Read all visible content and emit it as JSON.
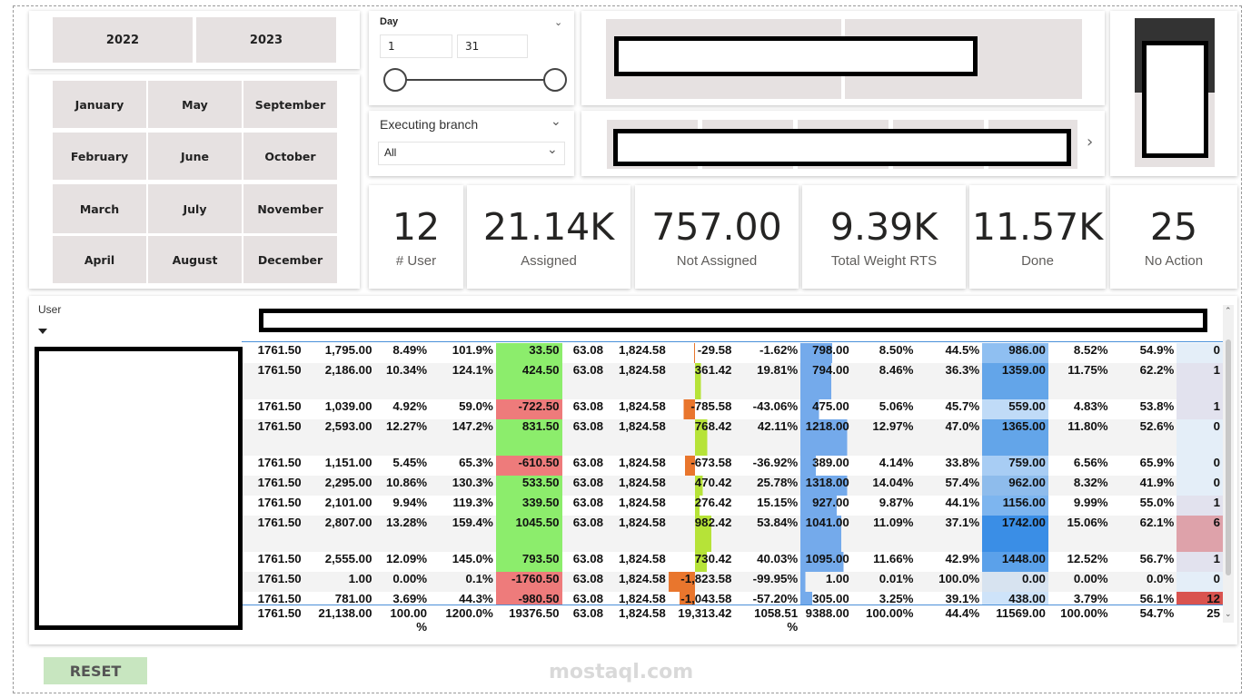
{
  "years": [
    "2022",
    "2023"
  ],
  "months": [
    "January",
    "May",
    "September",
    "February",
    "June",
    "October",
    "March",
    "July",
    "November",
    "April",
    "August",
    "December"
  ],
  "day_slicer": {
    "label": "Day",
    "start": "1",
    "end": "31"
  },
  "branch_slicer": {
    "label": "Executing branch",
    "selected": "All"
  },
  "kpis": [
    {
      "value": "12",
      "label": "# User"
    },
    {
      "value": "21.14K",
      "label": "Assigned"
    },
    {
      "value": "757.00",
      "label": "Not Assigned"
    },
    {
      "value": "9.39K",
      "label": "Total Weight RTS"
    },
    {
      "value": "11.57K",
      "label": "Done"
    },
    {
      "value": "25",
      "label": "No Action"
    }
  ],
  "table": {
    "header_user": "User",
    "rows": [
      [
        "1761.50",
        "1,795.00",
        "8.49%",
        "101.9%",
        "33.50",
        "63.08",
        "1,824.58",
        "-29.58",
        "-1.62%",
        "798.00",
        "8.50%",
        "44.5%",
        "986.00",
        "8.52%",
        "54.9%",
        "0"
      ],
      [
        "1761.50",
        "2,186.00",
        "10.34%",
        "124.1%",
        "424.50",
        "63.08",
        "1,824.58",
        "361.42",
        "19.81%",
        "794.00",
        "8.46%",
        "36.3%",
        "1359.00",
        "11.75%",
        "62.2%",
        "1"
      ],
      [
        "1761.50",
        "1,039.00",
        "4.92%",
        "59.0%",
        "-722.50",
        "63.08",
        "1,824.58",
        "-785.58",
        "-43.06%",
        "475.00",
        "5.06%",
        "45.7%",
        "559.00",
        "4.83%",
        "53.8%",
        "1"
      ],
      [
        "1761.50",
        "2,593.00",
        "12.27%",
        "147.2%",
        "831.50",
        "63.08",
        "1,824.58",
        "768.42",
        "42.11%",
        "1218.00",
        "12.97%",
        "47.0%",
        "1365.00",
        "11.80%",
        "52.6%",
        "0"
      ],
      [
        "1761.50",
        "1,151.00",
        "5.45%",
        "65.3%",
        "-610.50",
        "63.08",
        "1,824.58",
        "-673.58",
        "-36.92%",
        "389.00",
        "4.14%",
        "33.8%",
        "759.00",
        "6.56%",
        "65.9%",
        "0"
      ],
      [
        "1761.50",
        "2,295.00",
        "10.86%",
        "130.3%",
        "533.50",
        "63.08",
        "1,824.58",
        "470.42",
        "25.78%",
        "1318.00",
        "14.04%",
        "57.4%",
        "962.00",
        "8.32%",
        "41.9%",
        "0"
      ],
      [
        "1761.50",
        "2,101.00",
        "9.94%",
        "119.3%",
        "339.50",
        "63.08",
        "1,824.58",
        "276.42",
        "15.15%",
        "927.00",
        "9.87%",
        "44.1%",
        "1156.00",
        "9.99%",
        "55.0%",
        "1"
      ],
      [
        "1761.50",
        "2,807.00",
        "13.28%",
        "159.4%",
        "1045.50",
        "63.08",
        "1,824.58",
        "982.42",
        "53.84%",
        "1041.00",
        "11.09%",
        "37.1%",
        "1742.00",
        "15.06%",
        "62.1%",
        "6"
      ],
      [
        "1761.50",
        "2,555.00",
        "12.09%",
        "145.0%",
        "793.50",
        "63.08",
        "1,824.58",
        "730.42",
        "40.03%",
        "1095.00",
        "11.66%",
        "42.9%",
        "1448.00",
        "12.52%",
        "56.7%",
        "1"
      ],
      [
        "1761.50",
        "1.00",
        "0.00%",
        "0.1%",
        "-1760.50",
        "63.08",
        "1,824.58",
        "-1,823.58",
        "-99.95%",
        "1.00",
        "0.01%",
        "100.0%",
        "0.00",
        "0.00%",
        "0.0%",
        "0"
      ],
      [
        "1761.50",
        "781.00",
        "3.69%",
        "44.3%",
        "-980.50",
        "63.08",
        "1,824.58",
        "-1,043.58",
        "-57.20%",
        "305.00",
        "3.25%",
        "39.1%",
        "438.00",
        "3.79%",
        "56.1%",
        "12"
      ]
    ],
    "total": [
      "1761.50",
      "21,138.00",
      "100.00\n%",
      "1200.0%",
      "19376.50",
      "63.08",
      "1,824.58",
      "19,313.42",
      "1058.51\n%",
      "9388.00",
      "100.00%",
      "44.4%",
      "11569.00",
      "100.00%",
      "54.7%",
      "25"
    ]
  },
  "reset_label": "RESET",
  "watermark": {
    "text": "mostaql.com"
  },
  "colors": {
    "positive": "#8ced6c",
    "negative": "#ee7b7b",
    "blue": "#3a8ee6",
    "reset": "#c8e6c0"
  }
}
